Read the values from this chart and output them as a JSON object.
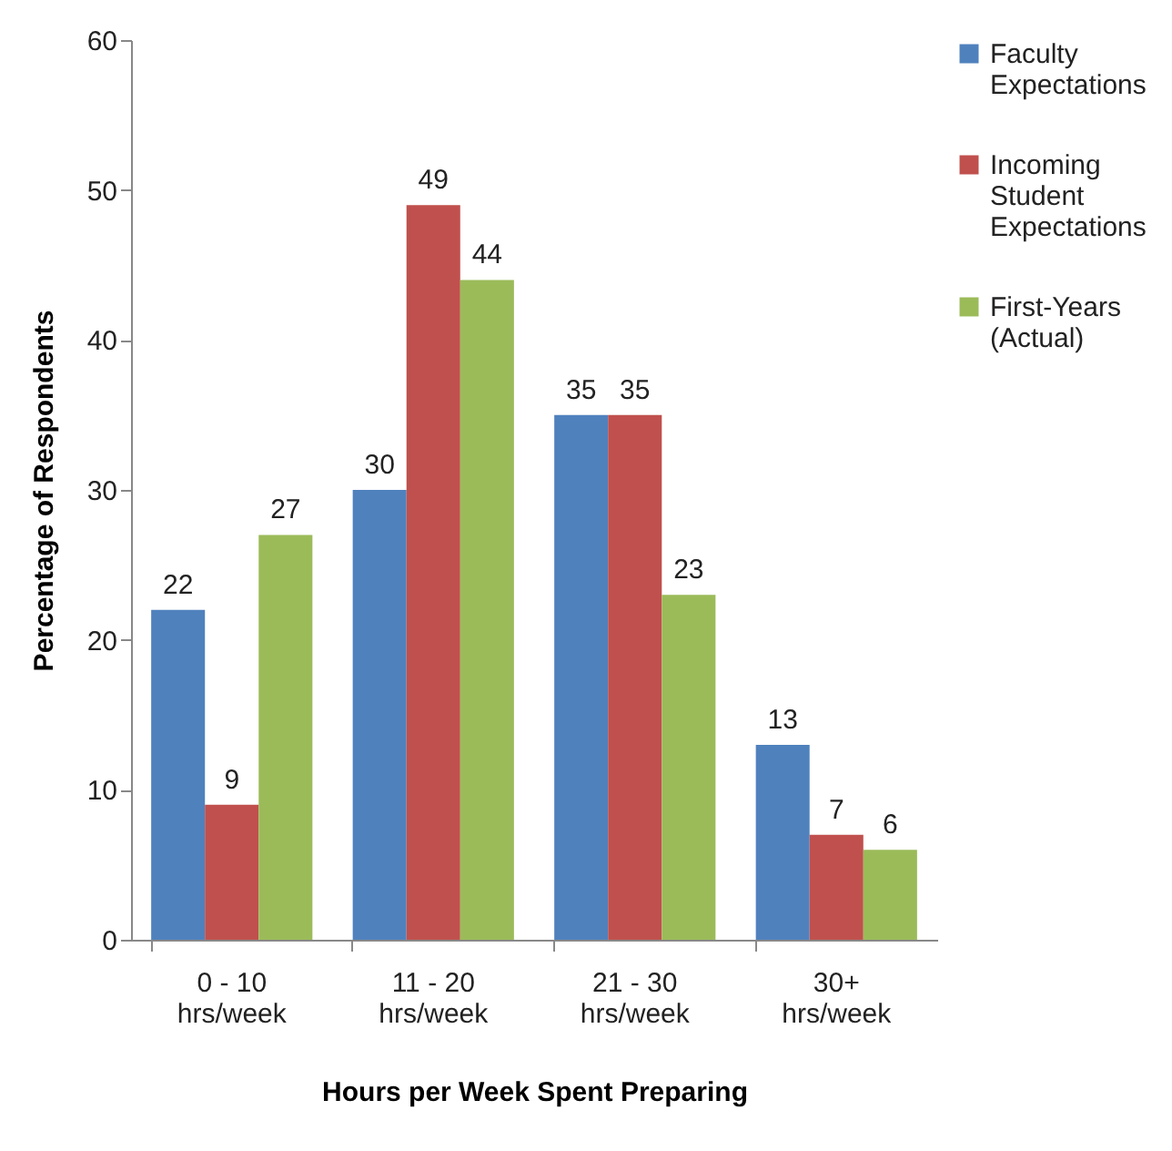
{
  "chart_data": {
    "type": "bar",
    "xlabel": "Hours per Week Spent Preparing",
    "ylabel": "Percentage of Respondents",
    "categories": [
      "0 - 10 hrs/week",
      "11 - 20 hrs/week",
      "21 - 30 hrs/week",
      "30+ hrs/week"
    ],
    "series": [
      {
        "name": "Faculty Expectations",
        "color": "#4f81bd",
        "values": [
          22,
          30,
          35,
          13
        ]
      },
      {
        "name": "Incoming Student Expectations",
        "color": "#c0504d",
        "values": [
          9,
          49,
          35,
          7
        ]
      },
      {
        "name": "First-Years (Actual)",
        "color": "#9bbb59",
        "values": [
          27,
          44,
          23,
          6
        ]
      }
    ],
    "ylim": [
      0,
      60
    ],
    "yticks": [
      0,
      10,
      20,
      30,
      40,
      50,
      60
    ],
    "grid": false,
    "legend": "right",
    "data_labels": true
  }
}
